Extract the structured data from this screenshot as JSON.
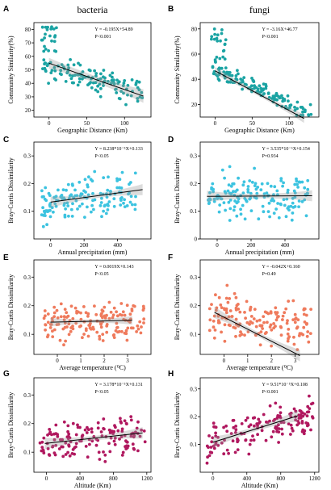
{
  "figure": {
    "panel_letters": [
      "A",
      "B",
      "C",
      "D",
      "E",
      "F",
      "G",
      "H"
    ],
    "column_titles": [
      "bacteria",
      "fungi"
    ]
  },
  "chart_data": [
    {
      "id": "A",
      "type": "scatter",
      "title": "bacteria",
      "xlabel": "Geographic  Distance (Km)",
      "ylabel": "Community Similarity(%)",
      "xlim": [
        -20,
        135
      ],
      "ylim": [
        15,
        85
      ],
      "xticks": [
        0,
        50,
        100
      ],
      "yticks": [
        20,
        30,
        40,
        50,
        60,
        70,
        80
      ],
      "color": "#1aa3a3",
      "fit": {
        "slope": -0.195,
        "intercept": 54.89,
        "x0": 0,
        "x1": 125
      },
      "band": [
        4,
        2.5,
        5
      ],
      "equation": "Y = -0.195X+54.89",
      "p_text": "P<0.001",
      "points": {
        "x": [
          -10,
          125
        ],
        "y_mean": [
          54,
          32
        ],
        "n": 125,
        "sd": 8,
        "seed": 11,
        "extra_x": [
          -10,
          10
        ],
        "extra_y": [
          62,
          82
        ],
        "extra_n": 22
      }
    },
    {
      "id": "B",
      "type": "scatter",
      "title": "fungi",
      "xlabel": "Geographic  Distance (Km)",
      "ylabel": "Community Similarity(%)",
      "xlim": [
        -20,
        140
      ],
      "ylim": [
        10,
        85
      ],
      "xticks": [
        0,
        50,
        100
      ],
      "yticks": [
        20,
        40,
        60,
        80
      ],
      "color": "#1aa3a3",
      "fit": {
        "slope": -3.16,
        "intercept": 46.77,
        "x0": 0,
        "x1": 12,
        "xscale": 10
      },
      "band": [
        3,
        1.5,
        3.5
      ],
      "equation": "Y = -3.16X+46.77",
      "p_text": "P<0.001",
      "points": {
        "x": [
          -5,
          130
        ],
        "y_mean": [
          50,
          12
        ],
        "n": 130,
        "sd": 6,
        "seed": 23,
        "extra_x": [
          -5,
          15
        ],
        "extra_y": [
          55,
          80
        ],
        "extra_n": 20
      }
    },
    {
      "id": "C",
      "type": "scatter",
      "title": "",
      "xlabel": "Annual precipitation  (mm)",
      "ylabel": "Bray-Curtis Dissimilarity",
      "xlim": [
        -100,
        600
      ],
      "ylim": [
        0.0,
        0.35
      ],
      "xticks": [
        0,
        200,
        400
      ],
      "yticks": [
        0.1,
        0.2,
        0.3
      ],
      "color": "#3cc3e0",
      "fit": {
        "slope": 8.238e-05,
        "intercept": 0.133,
        "x0": 0,
        "x1": 550
      },
      "band": [
        0.02,
        0.008,
        0.02
      ],
      "equation": "Y = 8.238*10⁻⁵X+0.133",
      "p_text": "P<0.05",
      "points": {
        "x": [
          -60,
          520
        ],
        "y_mean": [
          0.12,
          0.17
        ],
        "n": 150,
        "sd": 0.06,
        "seed": 37
      }
    },
    {
      "id": "D",
      "type": "scatter",
      "title": "",
      "xlabel": "Annual precipitation  (mm)",
      "ylabel": "Bray-Curtis Dissimilarity",
      "xlim": [
        -100,
        600
      ],
      "ylim": [
        0.0,
        0.35
      ],
      "xticks": [
        0,
        200,
        400
      ],
      "yticks": [
        0.0,
        0.1,
        0.2,
        0.3
      ],
      "color": "#3cc3e0",
      "fit": {
        "slope": 3.535e-06,
        "intercept": 0.154,
        "x0": -60,
        "x1": 560
      },
      "band": [
        0.02,
        0.008,
        0.02
      ],
      "equation": "Y = 3.535*10⁻⁶X+0.154",
      "p_text": "P=0.934",
      "points": {
        "x": [
          -60,
          540
        ],
        "y_mean": [
          0.15,
          0.16
        ],
        "n": 155,
        "sd": 0.07,
        "seed": 41
      }
    },
    {
      "id": "E",
      "type": "scatter",
      "title": "",
      "xlabel": "Average temperature (⁰C)",
      "ylabel": "Bray-Curtis Dissimilarity",
      "xlim": [
        -1,
        4
      ],
      "ylim": [
        0.03,
        0.36
      ],
      "xticks": [
        0,
        1,
        2,
        3
      ],
      "yticks": [
        0.1,
        0.2,
        0.3
      ],
      "color": "#ef7a5c",
      "fit": {
        "slope": 0.0019,
        "intercept": 0.143,
        "x0": -0.3,
        "x1": 3.2
      },
      "band": [
        0.015,
        0.006,
        0.015
      ],
      "equation": "Y = 0.0019X+0.143",
      "p_text": "P<0.05",
      "points": {
        "x": [
          -0.6,
          3.7
        ],
        "y_mean": [
          0.145,
          0.15
        ],
        "n": 155,
        "sd": 0.06,
        "seed": 53
      }
    },
    {
      "id": "F",
      "type": "scatter",
      "title": "",
      "xlabel": "Average temperature (⁰C)",
      "ylabel": "Bray-Curtis Dissimilarity",
      "xlim": [
        -1,
        4
      ],
      "ylim": [
        0.03,
        0.36
      ],
      "xticks": [
        0,
        1,
        2,
        3
      ],
      "yticks": [
        0.1,
        0.2,
        0.3
      ],
      "color": "#ef7a5c",
      "fit": {
        "slope": -0.042,
        "intercept": 0.16,
        "x0": -0.4,
        "x1": 3.2
      },
      "band": [
        0.02,
        0.008,
        0.02
      ],
      "equation": "Y = -0.042X+0.160",
      "p_text": "P=0.49",
      "points": {
        "x": [
          -0.6,
          3.7
        ],
        "y_mean": [
          0.17,
          0.13
        ],
        "n": 155,
        "sd": 0.07,
        "seed": 67
      }
    },
    {
      "id": "G",
      "type": "scatter",
      "title": "",
      "xlabel": "Altitude (Km)",
      "ylabel": "Bray-Curtis Dissimilarity",
      "xlim": [
        -150,
        1250
      ],
      "ylim": [
        0.03,
        0.36
      ],
      "xticks": [
        0,
        400,
        800,
        1200
      ],
      "yticks": [
        0.1,
        0.2,
        0.3
      ],
      "color": "#b0185f",
      "fit": {
        "slope": 3.178e-05,
        "intercept": 0.131,
        "x0": -20,
        "x1": 1150
      },
      "band": [
        0.02,
        0.008,
        0.02
      ],
      "equation": "Y = 3.178*10⁻⁵X+0.131",
      "p_text": "P<0.05",
      "points": {
        "x": [
          -80,
          1180
        ],
        "y_mean": [
          0.13,
          0.17
        ],
        "n": 150,
        "sd": 0.06,
        "seed": 79
      }
    },
    {
      "id": "H",
      "type": "scatter",
      "title": "",
      "xlabel": "Altitude (Km)",
      "ylabel": "Bray-Curtis Dissimilarity",
      "xlim": [
        -150,
        1250
      ],
      "ylim": [
        0.0,
        0.34
      ],
      "xticks": [
        0,
        400,
        800,
        1200
      ],
      "yticks": [
        0.1,
        0.2,
        0.3
      ],
      "color": "#b0185f",
      "fit": {
        "slope": 9.51e-05,
        "intercept": 0.108,
        "x0": 0,
        "x1": 1000
      },
      "band": [
        0.02,
        0.008,
        0.02
      ],
      "equation": "Y = 9.51*10⁻⁵X+0.108",
      "p_text": "P<0.001",
      "points": {
        "x": [
          -80,
          1180
        ],
        "y_mean": [
          0.1,
          0.21
        ],
        "n": 150,
        "sd": 0.055,
        "seed": 97
      }
    }
  ]
}
